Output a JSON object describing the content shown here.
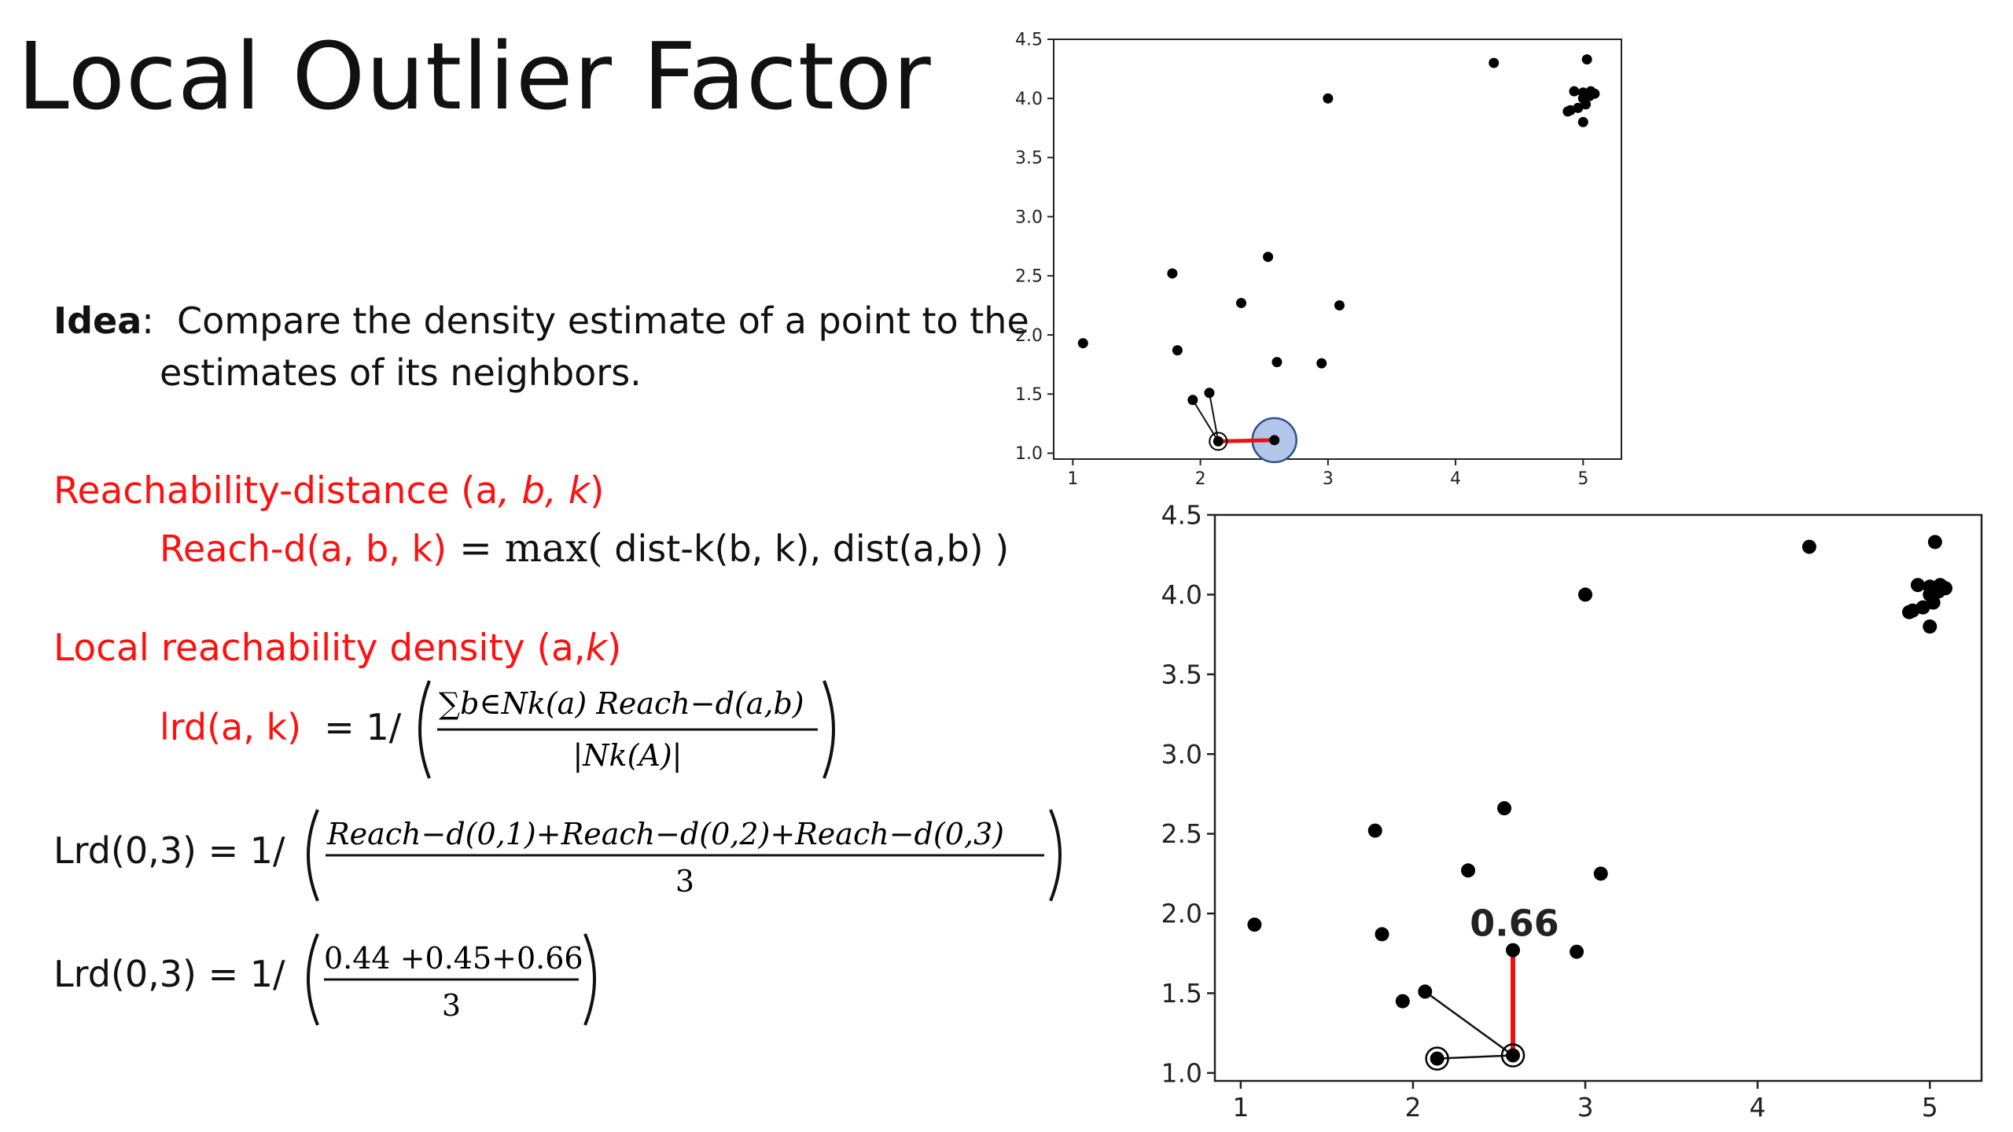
{
  "title": "Local Outlier Factor",
  "idea": {
    "label": "Idea",
    "separator": ":",
    "line1": "Compare the density estimate of a point to the",
    "line2": "estimates of its neighbors."
  },
  "reach": {
    "heading_prefix": "Reachability-distance (a",
    "heading_args": ", b, k",
    "heading_suffix": ")",
    "lhs": "Reach-d(a, b, k)",
    "eq": " = ",
    "max": "max(",
    "rhs": " dist-k(b, k), dist(a,b) )"
  },
  "lrd": {
    "heading_prefix": "Local reachability density (a,",
    "heading_k": "k",
    "heading_suffix": ")",
    "lhs": "lrd(a, k)",
    "eq": "= 1/",
    "numerator": "∑b∈Nk(a) Reach−d(a,b)",
    "denominator": "|Nk(A)|"
  },
  "example1": {
    "lhs": "Lrd(0,3) = 1/",
    "numerator": "Reach−d(0,1)+Reach−d(0,2)+Reach−d(0,3)",
    "denominator": "3"
  },
  "example2": {
    "lhs": "Lrd(0,3) = 1/",
    "numerator": "0.44 +0.45+0.66",
    "denominator": "3"
  },
  "chart_data": [
    {
      "type": "scatter",
      "title": "",
      "xlabel": "",
      "ylabel": "",
      "xlim": [
        0.85,
        5.3
      ],
      "ylim": [
        0.95,
        4.5
      ],
      "xticks": [
        "1",
        "2",
        "3",
        "4",
        "5"
      ],
      "yticks": [
        "1.0",
        "1.5",
        "2.0",
        "2.5",
        "3.0",
        "3.5",
        "4.0",
        "4.5"
      ],
      "points": [
        {
          "x": 1.08,
          "y": 1.93
        },
        {
          "x": 1.78,
          "y": 2.52
        },
        {
          "x": 1.82,
          "y": 1.87
        },
        {
          "x": 1.94,
          "y": 1.45
        },
        {
          "x": 2.07,
          "y": 1.51
        },
        {
          "x": 2.32,
          "y": 2.27
        },
        {
          "x": 2.53,
          "y": 2.66
        },
        {
          "x": 2.6,
          "y": 1.77
        },
        {
          "x": 2.95,
          "y": 1.76
        },
        {
          "x": 3.09,
          "y": 2.25
        },
        {
          "x": 3.0,
          "y": 4.0
        },
        {
          "x": 4.3,
          "y": 4.3
        },
        {
          "x": 5.03,
          "y": 4.33
        },
        {
          "x": 4.93,
          "y": 4.06
        },
        {
          "x": 5.0,
          "y": 4.05
        },
        {
          "x": 5.06,
          "y": 4.06
        },
        {
          "x": 5.0,
          "y": 4.0
        },
        {
          "x": 5.05,
          "y": 4.02
        },
        {
          "x": 5.09,
          "y": 4.04
        },
        {
          "x": 4.9,
          "y": 3.9
        },
        {
          "x": 4.96,
          "y": 3.92
        },
        {
          "x": 5.02,
          "y": 3.95
        },
        {
          "x": 4.88,
          "y": 3.89
        },
        {
          "x": 5.0,
          "y": 3.8
        },
        {
          "x": 2.14,
          "y": 1.1
        },
        {
          "x": 2.58,
          "y": 1.11
        }
      ],
      "circled_points": [
        {
          "x": 2.14,
          "y": 1.1
        }
      ],
      "highlight_circle": {
        "x": 2.58,
        "y": 1.11
      },
      "black_lines": [
        [
          {
            "x": 2.14,
            "y": 1.1
          },
          {
            "x": 1.94,
            "y": 1.45
          }
        ],
        [
          {
            "x": 2.14,
            "y": 1.1
          },
          {
            "x": 2.07,
            "y": 1.51
          }
        ]
      ],
      "red_lines": [
        [
          {
            "x": 2.14,
            "y": 1.1
          },
          {
            "x": 2.58,
            "y": 1.11
          }
        ]
      ],
      "annotation": "",
      "grid": false
    },
    {
      "type": "scatter",
      "title": "",
      "xlabel": "",
      "ylabel": "",
      "xlim": [
        0.85,
        5.3
      ],
      "ylim": [
        0.95,
        4.5
      ],
      "xticks": [
        "1",
        "2",
        "3",
        "4",
        "5"
      ],
      "yticks": [
        "1.0",
        "1.5",
        "2.0",
        "2.5",
        "3.0",
        "3.5",
        "4.0",
        "4.5"
      ],
      "points": [
        {
          "x": 1.08,
          "y": 1.93
        },
        {
          "x": 1.78,
          "y": 2.52
        },
        {
          "x": 1.82,
          "y": 1.87
        },
        {
          "x": 1.94,
          "y": 1.45
        },
        {
          "x": 2.07,
          "y": 1.51
        },
        {
          "x": 2.32,
          "y": 2.27
        },
        {
          "x": 2.53,
          "y": 2.66
        },
        {
          "x": 2.58,
          "y": 1.77
        },
        {
          "x": 2.95,
          "y": 1.76
        },
        {
          "x": 3.09,
          "y": 2.25
        },
        {
          "x": 3.0,
          "y": 4.0
        },
        {
          "x": 4.3,
          "y": 4.3
        },
        {
          "x": 5.03,
          "y": 4.33
        },
        {
          "x": 4.93,
          "y": 4.06
        },
        {
          "x": 5.0,
          "y": 4.05
        },
        {
          "x": 5.06,
          "y": 4.06
        },
        {
          "x": 5.0,
          "y": 4.0
        },
        {
          "x": 5.05,
          "y": 4.02
        },
        {
          "x": 5.09,
          "y": 4.04
        },
        {
          "x": 4.9,
          "y": 3.9
        },
        {
          "x": 4.96,
          "y": 3.92
        },
        {
          "x": 5.02,
          "y": 3.95
        },
        {
          "x": 4.88,
          "y": 3.89
        },
        {
          "x": 5.0,
          "y": 3.8
        },
        {
          "x": 2.14,
          "y": 1.09
        },
        {
          "x": 2.58,
          "y": 1.11
        }
      ],
      "circled_points": [
        {
          "x": 2.14,
          "y": 1.09
        },
        {
          "x": 2.58,
          "y": 1.11
        }
      ],
      "highlight_circle": null,
      "black_lines": [
        [
          {
            "x": 2.58,
            "y": 1.11
          },
          {
            "x": 2.07,
            "y": 1.51
          }
        ],
        [
          {
            "x": 2.14,
            "y": 1.09
          },
          {
            "x": 2.58,
            "y": 1.11
          }
        ]
      ],
      "red_lines": [
        [
          {
            "x": 2.58,
            "y": 1.11
          },
          {
            "x": 2.58,
            "y": 1.77
          }
        ]
      ],
      "annotation": "0.66",
      "grid": false
    }
  ]
}
